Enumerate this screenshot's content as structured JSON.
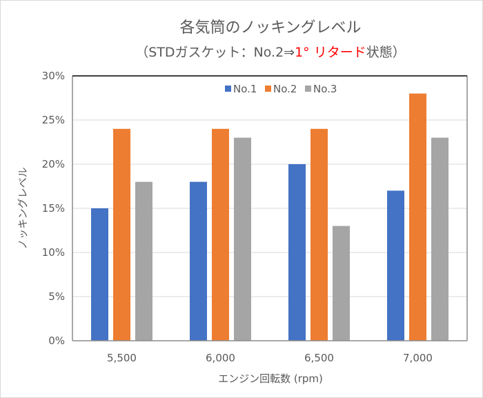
{
  "chart_data": {
    "type": "bar",
    "title": "各気筒のノッキングレベル",
    "subtitle": {
      "prefix": "（STDガスケット：No.2⇒",
      "highlight": "1° リタード",
      "suffix": "状態）",
      "highlight_color": "#ff0000"
    },
    "xlabel": "エンジン回転数 (rpm)",
    "ylabel": "ノッキングレベル",
    "categories": [
      "5,500",
      "6,000",
      "6,500",
      "7,000"
    ],
    "series": [
      {
        "name": "No.1",
        "color": "#4472c4",
        "values": [
          15,
          18,
          20,
          17
        ]
      },
      {
        "name": "No.2",
        "color": "#ed7d31",
        "values": [
          24,
          24,
          24,
          28
        ]
      },
      {
        "name": "No.3",
        "color": "#a5a5a5",
        "values": [
          18,
          23,
          13,
          23
        ]
      }
    ],
    "ylim": [
      0,
      30
    ],
    "yticks": [
      0,
      5,
      10,
      15,
      20,
      25,
      30
    ],
    "ytick_labels": [
      "0%",
      "5%",
      "10%",
      "15%",
      "20%",
      "25%",
      "30%"
    ],
    "grid": true,
    "legend_position": "top-center"
  }
}
